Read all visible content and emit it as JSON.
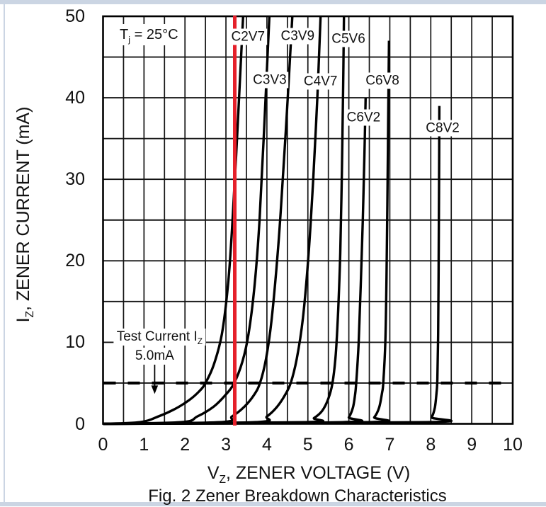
{
  "page": {
    "background": "#ffffff",
    "frame_color": "#cbd5e3",
    "text_color": "#111111"
  },
  "chart_data": {
    "type": "line",
    "caption": "Fig. 2  Zener Breakdown Characteristics",
    "xlabel": {
      "pre": "V",
      "sub": "Z",
      "post": ", ZENER VOLTAGE (V)"
    },
    "ylabel": {
      "pre": "I",
      "sub": "Z",
      "post": ", ZENER CURRENT (mA)"
    },
    "xlim": [
      0,
      10
    ],
    "ylim": [
      0,
      50
    ],
    "x_ticks": [
      0,
      1,
      2,
      3,
      4,
      5,
      6,
      7,
      8,
      9,
      10
    ],
    "y_ticks": [
      0,
      10,
      20,
      30,
      40,
      50
    ],
    "x_grid_step": 0.5,
    "y_grid_step": 5,
    "grid": true,
    "legend": "labels-on-chart",
    "curve_color": "#000000",
    "grid_color": "#141414",
    "temperature_note": {
      "pre": "T",
      "sub": "j",
      "post": " = 25°C",
      "at": [
        1.12,
        47.7
      ]
    },
    "test_current_note": {
      "line1_pre": "Test Current I",
      "line1_sub": "Z",
      "line2": "5.0mA",
      "line1_at": [
        1.38,
        10.6
      ],
      "line2_at": [
        1.26,
        8.3
      ],
      "arrow": {
        "v": 1.26,
        "i_from": 7.4,
        "i_to": 5.4
      }
    },
    "test_current_line": {
      "i": 5.0,
      "style": "dashed"
    },
    "marker_line": {
      "v": 3.21,
      "color": "#e5202a"
    },
    "series": [
      {
        "name": "C2V7",
        "label_at": [
          3.54,
          47.5
        ],
        "points": [
          [
            0,
            0
          ],
          [
            0.9,
            0.2
          ],
          [
            1.35,
            0.9
          ],
          [
            1.75,
            1.8
          ],
          [
            2.1,
            2.9
          ],
          [
            2.35,
            4
          ],
          [
            2.5,
            5
          ],
          [
            2.7,
            7.2
          ],
          [
            2.9,
            11
          ],
          [
            3.05,
            17
          ],
          [
            3.15,
            24
          ],
          [
            3.25,
            33
          ],
          [
            3.35,
            43
          ],
          [
            3.42,
            50
          ]
        ]
      },
      {
        "name": "C3V3",
        "label_at": [
          4.07,
          42.2
        ],
        "points": [
          [
            0,
            0
          ],
          [
            1.9,
            0.2
          ],
          [
            2.3,
            0.9
          ],
          [
            2.7,
            2.1
          ],
          [
            3.0,
            3.6
          ],
          [
            3.2,
            5
          ],
          [
            3.4,
            7.6
          ],
          [
            3.55,
            11
          ],
          [
            3.7,
            17
          ],
          [
            3.82,
            25
          ],
          [
            3.93,
            36
          ],
          [
            4.06,
            50
          ]
        ]
      },
      {
        "name": "C3V9",
        "label_at": [
          4.75,
          47.6
        ],
        "points": [
          [
            0,
            0
          ],
          [
            2.85,
            0.2
          ],
          [
            3.15,
            0.9
          ],
          [
            3.45,
            2.1
          ],
          [
            3.68,
            3.5
          ],
          [
            3.83,
            5
          ],
          [
            3.98,
            8
          ],
          [
            4.12,
            13
          ],
          [
            4.28,
            22
          ],
          [
            4.4,
            31
          ],
          [
            4.52,
            41
          ],
          [
            4.62,
            50
          ]
        ]
      },
      {
        "name": "C4V7",
        "label_at": [
          5.31,
          42.0
        ],
        "points": [
          [
            0,
            0
          ],
          [
            3.7,
            0.2
          ],
          [
            4.0,
            0.9
          ],
          [
            4.25,
            2.1
          ],
          [
            4.45,
            3.6
          ],
          [
            4.58,
            5
          ],
          [
            4.73,
            8
          ],
          [
            4.88,
            13
          ],
          [
            5.02,
            21
          ],
          [
            5.13,
            30
          ],
          [
            5.23,
            40
          ],
          [
            5.31,
            50
          ]
        ]
      },
      {
        "name": "C5V6",
        "label_at": [
          5.99,
          47.2
        ],
        "points": [
          [
            0,
            0
          ],
          [
            4.95,
            0.2
          ],
          [
            5.15,
            0.7
          ],
          [
            5.35,
            1.6
          ],
          [
            5.5,
            3.1
          ],
          [
            5.6,
            5
          ],
          [
            5.68,
            8.5
          ],
          [
            5.74,
            14
          ],
          [
            5.79,
            21
          ],
          [
            5.83,
            31
          ],
          [
            5.86,
            41
          ],
          [
            5.88,
            50
          ]
        ]
      },
      {
        "name": "C6V2",
        "label_at": [
          6.36,
          37.6
        ],
        "points": [
          [
            0,
            0
          ],
          [
            5.85,
            0.2
          ],
          [
            6.0,
            0.8
          ],
          [
            6.1,
            2
          ],
          [
            6.15,
            3.5
          ],
          [
            6.18,
            5
          ],
          [
            6.24,
            10
          ],
          [
            6.29,
            17
          ],
          [
            6.34,
            25
          ],
          [
            6.38,
            33
          ],
          [
            6.41,
            40
          ]
        ]
      },
      {
        "name": "C6V8",
        "label_at": [
          6.82,
          42.1
        ],
        "points": [
          [
            0,
            0
          ],
          [
            6.45,
            0.2
          ],
          [
            6.62,
            0.8
          ],
          [
            6.74,
            2
          ],
          [
            6.81,
            3.8
          ],
          [
            6.84,
            5
          ],
          [
            6.89,
            10
          ],
          [
            6.92,
            18
          ],
          [
            6.94,
            27
          ],
          [
            6.96,
            37
          ],
          [
            6.98,
            47
          ]
        ]
      },
      {
        "name": "C8V2",
        "label_at": [
          8.29,
          36.3
        ],
        "points": [
          [
            0,
            0
          ],
          [
            7.88,
            0.2
          ],
          [
            8.02,
            0.8
          ],
          [
            8.1,
            2
          ],
          [
            8.14,
            3.8
          ],
          [
            8.16,
            5.5
          ],
          [
            8.18,
            11
          ],
          [
            8.19,
            18
          ],
          [
            8.2,
            28
          ],
          [
            8.21,
            39
          ]
        ]
      }
    ]
  }
}
